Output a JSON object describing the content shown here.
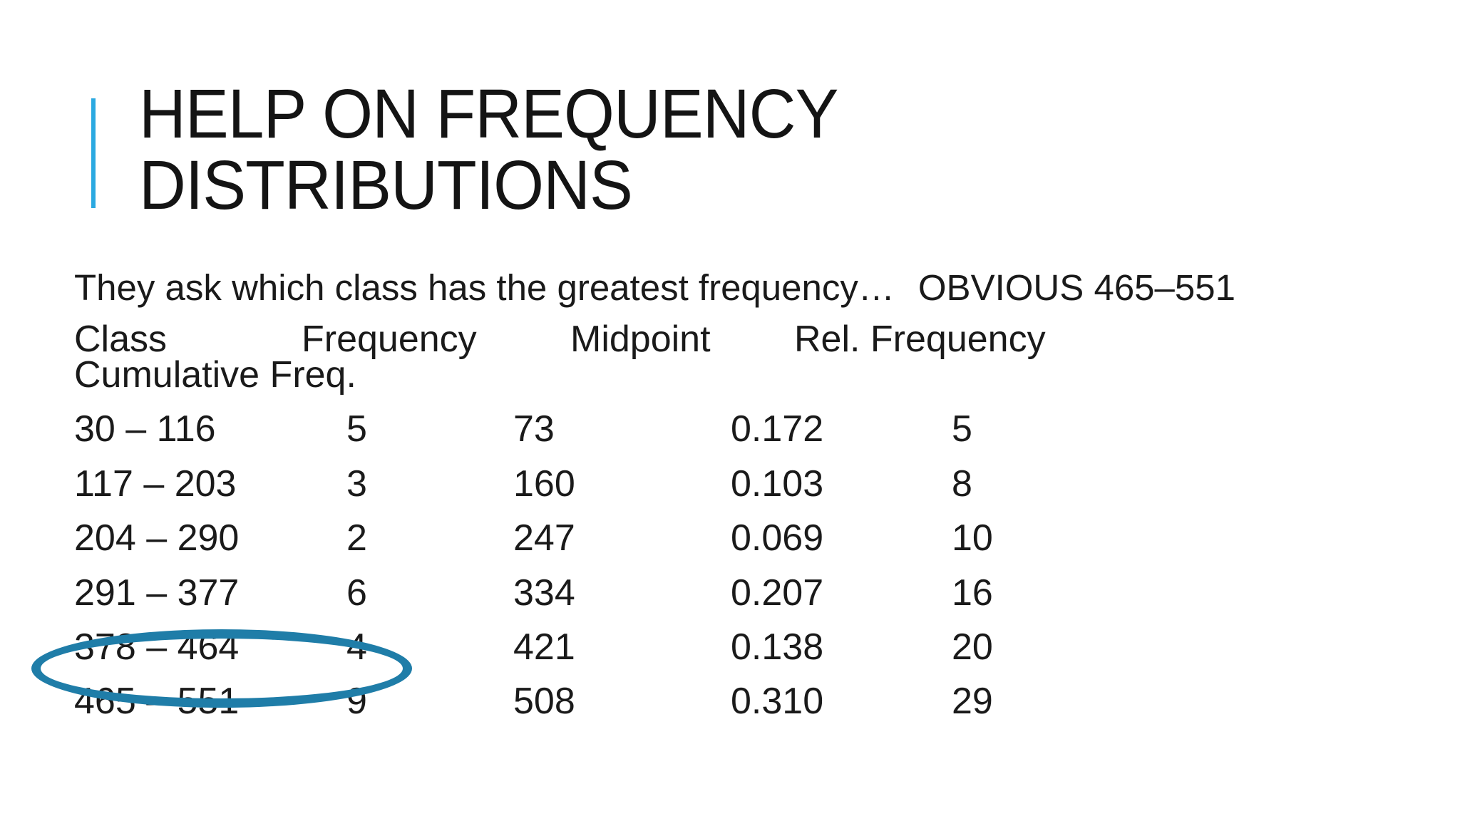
{
  "slide": {
    "accent_bar_color": "#2BA9E1",
    "title": "HELP ON FREQUENCY DISTRIBUTIONS",
    "lead": {
      "question": "They ask which class has the greatest frequency…",
      "answer": "OBVIOUS 465–551"
    },
    "table": {
      "headers": [
        "Class",
        "Frequency",
        "Midpoint",
        "Rel. Frequency",
        "Cumulative Freq."
      ],
      "rows": [
        {
          "class_range": "30 – 116",
          "frequency": "5",
          "midpoint": "73",
          "rel_frequency": "0.172",
          "cumulative_frequency": "5"
        },
        {
          "class_range": "117 – 203",
          "frequency": "3",
          "midpoint": "160",
          "rel_frequency": "0.103",
          "cumulative_frequency": "8"
        },
        {
          "class_range": "204 – 290",
          "frequency": "2",
          "midpoint": "247",
          "rel_frequency": "0.069",
          "cumulative_frequency": "10"
        },
        {
          "class_range": "291 – 377",
          "frequency": "6",
          "midpoint": "334",
          "rel_frequency": "0.207",
          "cumulative_frequency": "16"
        },
        {
          "class_range": "378 – 464",
          "frequency": "4",
          "midpoint": "421",
          "rel_frequency": "0.138",
          "cumulative_frequency": "20"
        },
        {
          "class_range": "465 – 551",
          "frequency": "9",
          "midpoint": "508",
          "rel_frequency": "0.310",
          "cumulative_frequency": "29"
        }
      ]
    },
    "annotation": {
      "type": "ellipse",
      "color": "#1F7DA8",
      "highlighted_class": "465 – 551"
    }
  }
}
